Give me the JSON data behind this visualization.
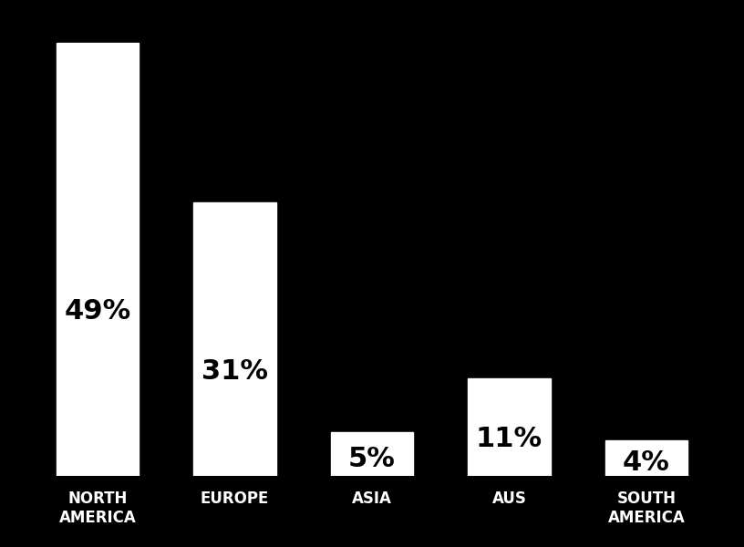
{
  "categories": [
    "NORTH\nAMERICA",
    "EUROPE",
    "ASIA",
    "AUS",
    "SOUTH\nAMERICA"
  ],
  "values": [
    49,
    31,
    5,
    11,
    4
  ],
  "labels": [
    "49%",
    "31%",
    "5%",
    "11%",
    "4%"
  ],
  "bar_color": "#ffffff",
  "background_color": "#000000",
  "text_color": "#000000",
  "label_color": "#ffffff",
  "ylim": [
    0,
    52
  ],
  "bar_width": 0.6,
  "label_fontsize": 22,
  "tick_fontsize": 12
}
